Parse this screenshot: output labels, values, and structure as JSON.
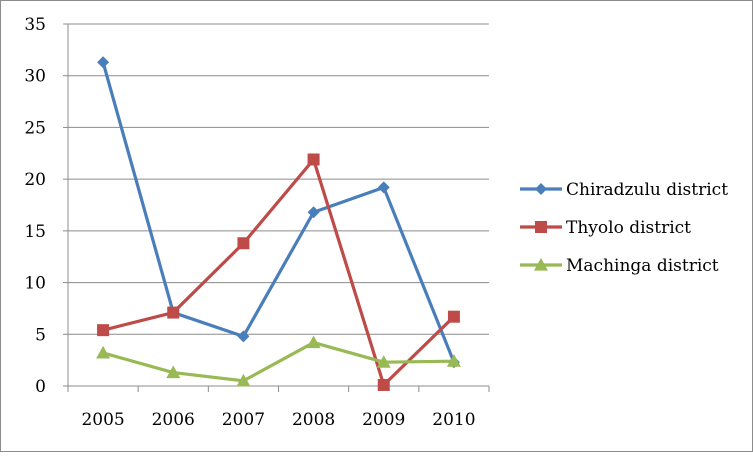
{
  "chart_data": {
    "type": "line",
    "title": "",
    "xlabel": "",
    "ylabel": "",
    "x": [
      "2005",
      "2006",
      "2007",
      "2008",
      "2009",
      "2010"
    ],
    "ylim": [
      0,
      35
    ],
    "yticks": [
      "0",
      "5",
      "10",
      "15",
      "20",
      "25",
      "30",
      "35"
    ],
    "grid": true,
    "legend_position": "right",
    "series": [
      {
        "name": "Chiradzulu district",
        "color": "#4a7ebb",
        "marker": "diamond",
        "values": [
          31.3,
          7.1,
          4.8,
          16.8,
          19.2,
          2.3
        ]
      },
      {
        "name": "Thyolo district",
        "color": "#be4b48",
        "marker": "square",
        "values": [
          5.4,
          7.1,
          13.8,
          21.9,
          0.1,
          6.7
        ]
      },
      {
        "name": "Machinga district",
        "color": "#98b954",
        "marker": "triangle",
        "values": [
          3.2,
          1.3,
          0.5,
          4.2,
          2.3,
          2.4
        ]
      }
    ]
  }
}
